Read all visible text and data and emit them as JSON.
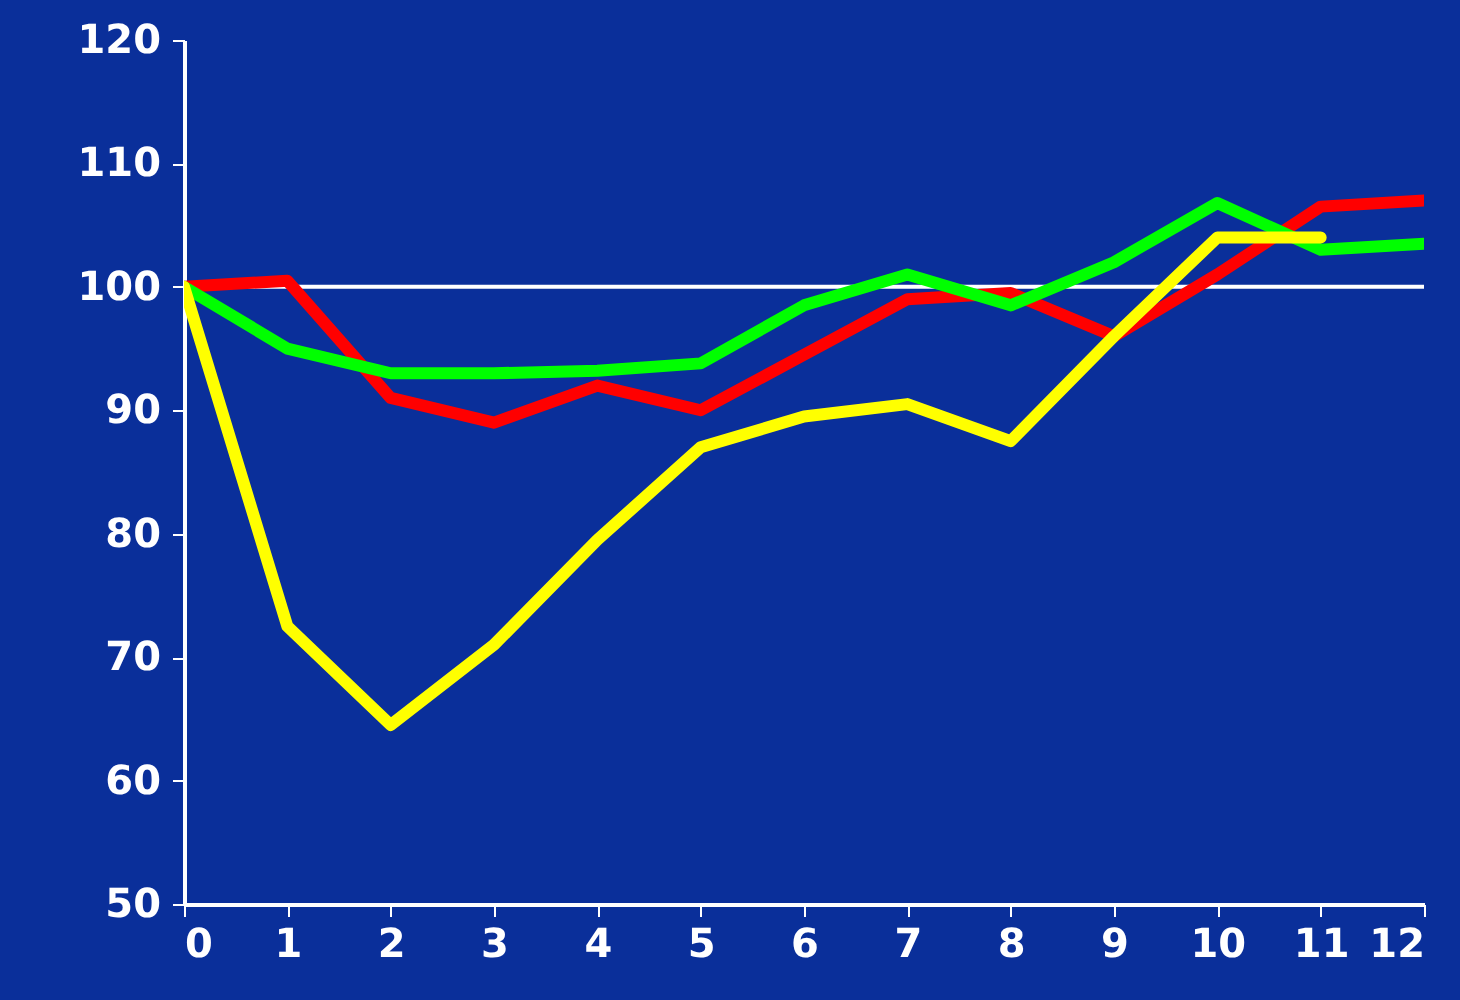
{
  "chart_data": {
    "type": "line",
    "x": [
      0,
      1,
      2,
      3,
      4,
      5,
      6,
      7,
      8,
      9,
      10,
      11,
      12
    ],
    "series": [
      {
        "color": "#ff0000",
        "values": [
          100,
          100.5,
          91,
          89,
          92,
          90,
          94.5,
          99,
          99.5,
          96,
          101,
          106.5,
          107
        ]
      },
      {
        "color": "#00ff00",
        "values": [
          100,
          95,
          93,
          93,
          93.2,
          93.8,
          98.5,
          101,
          98.5,
          102,
          106.8,
          103,
          103.5
        ]
      },
      {
        "color": "#ffff00",
        "values": [
          100,
          72.5,
          64.5,
          71,
          79.5,
          87,
          89.5,
          90.5,
          87.5,
          96,
          104,
          104,
          null
        ]
      }
    ],
    "xlim": [
      0,
      12
    ],
    "xticks": [
      0,
      1,
      2,
      3,
      4,
      5,
      6,
      7,
      8,
      9,
      10,
      11,
      12
    ],
    "ylim": [
      50,
      120
    ],
    "yticks": [
      50,
      60,
      70,
      80,
      90,
      100,
      110,
      120
    ],
    "ref_lines": [
      {
        "axis": "y",
        "value": 100,
        "color": "#ffffff"
      }
    ],
    "grid": false,
    "marker": "none",
    "line_style": "solid"
  }
}
